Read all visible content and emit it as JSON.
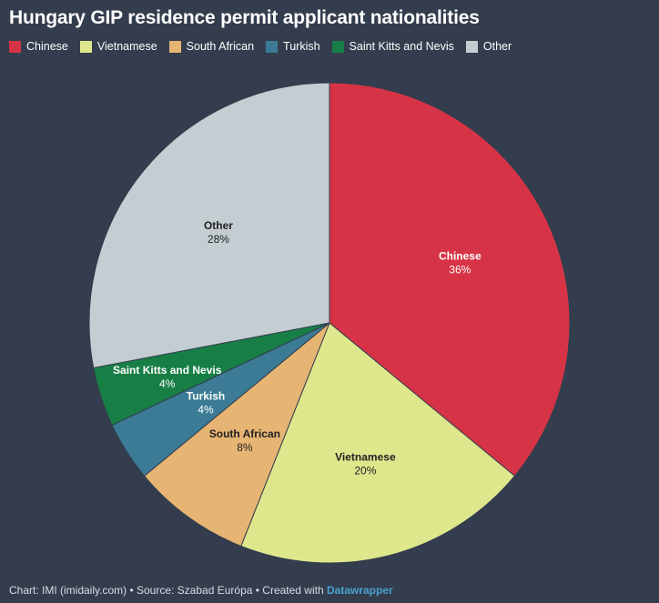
{
  "chart_data": {
    "type": "pie",
    "title": "Hungary GIP residence permit applicant nationalities",
    "slices": [
      {
        "label": "Chinese",
        "value": 36,
        "display": "36%",
        "color": "#d63446",
        "text_color": "#ffffff"
      },
      {
        "label": "Vietnamese",
        "value": 20,
        "display": "20%",
        "color": "#dfe78d",
        "text_color": "#222222"
      },
      {
        "label": "South African",
        "value": 8,
        "display": "8%",
        "color": "#e6b473",
        "text_color": "#222222"
      },
      {
        "label": "Turkish",
        "value": 4,
        "display": "4%",
        "color": "#3b7b95",
        "text_color": "#ffffff"
      },
      {
        "label": "Saint Kitts and Nevis",
        "value": 4,
        "display": "4%",
        "color": "#177f46",
        "text_color": "#ffffff"
      },
      {
        "label": "Other",
        "value": 28,
        "display": "28%",
        "color": "#c3cdd2",
        "text_color": "#222222"
      }
    ],
    "legend_position": "top-left"
  },
  "footer": {
    "prefix": "Chart: IMI (imidaily.com) • Source: Szabad Európa • Created with ",
    "tool": "Datawrapper"
  }
}
